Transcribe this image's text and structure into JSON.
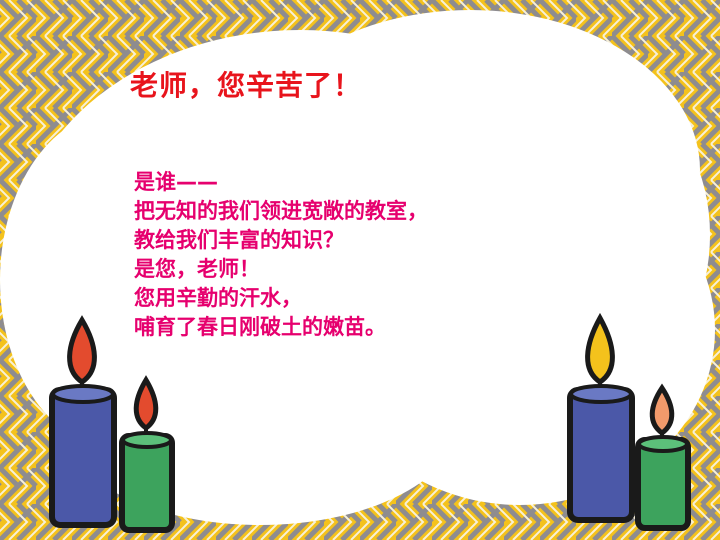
{
  "slide": {
    "title": "老师，您辛苦了！",
    "poem_lines": [
      "是谁——",
      "把无知的我们领进宽敞的教室，",
      "教给我们丰富的知识？",
      "是您，老师！",
      "您用辛勤的汗水，",
      "哺育了春日刚破土的嫩苗。"
    ]
  },
  "colors": {
    "title": "#e8141c",
    "poem_text": "#e6006e",
    "pattern_yellow": "#f4c21c",
    "pattern_gray": "#8e8c8f",
    "cloud": "#ffffff",
    "candle_blue": "#4b58a8",
    "candle_green": "#3da35d",
    "flame_red": "#e34b2e",
    "flame_yellow": "#f4c21c",
    "flame_peach": "#f29a6b"
  }
}
